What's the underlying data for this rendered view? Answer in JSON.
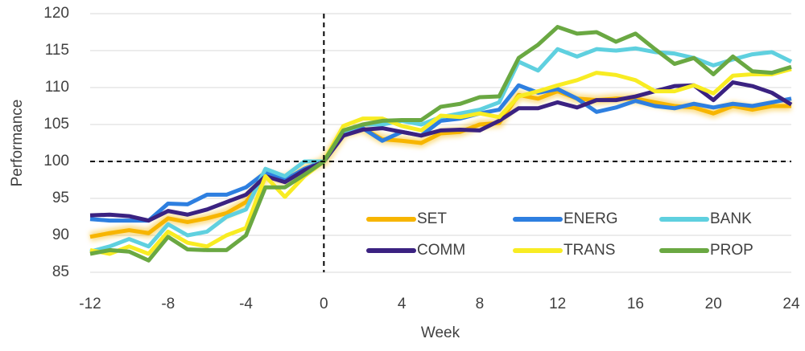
{
  "chart_data": {
    "type": "line",
    "x_label": "Week",
    "y_label": "Performance",
    "x": [
      -12,
      -11,
      -10,
      -9,
      -8,
      -7,
      -6,
      -5,
      -4,
      -3,
      -2,
      -1,
      0,
      1,
      2,
      3,
      4,
      5,
      6,
      7,
      8,
      9,
      10,
      11,
      12,
      13,
      14,
      15,
      16,
      17,
      18,
      19,
      20,
      21,
      22,
      23,
      24
    ],
    "xlim": [
      -12,
      24
    ],
    "xticks": [
      -12,
      -8,
      -4,
      0,
      4,
      8,
      12,
      16,
      20,
      24
    ],
    "ylim": [
      85,
      120
    ],
    "yticks": [
      85,
      90,
      95,
      100,
      105,
      110,
      115,
      120
    ],
    "vlines": [
      0
    ],
    "hlines": [
      100
    ],
    "legend": "lower right",
    "series": [
      {
        "name": "SET",
        "color": "#f7b500",
        "values": [
          89.8,
          90.3,
          90.7,
          90.3,
          92.3,
          91.8,
          92.3,
          93,
          94.5,
          98,
          97.5,
          99,
          100,
          103.8,
          104.5,
          103,
          102.8,
          102.5,
          103.8,
          104,
          105,
          105.2,
          109,
          108.5,
          109.5,
          108.5,
          108.3,
          108.5,
          108.5,
          108,
          107.5,
          107.3,
          106.5,
          107.5,
          107,
          107.5,
          107.5
        ]
      },
      {
        "name": "ENERG",
        "color": "#2e7fe0",
        "values": [
          92.2,
          92,
          92,
          92,
          94.3,
          94.2,
          95.5,
          95.5,
          96.5,
          98.5,
          97.5,
          99,
          100,
          103.5,
          104.5,
          102.8,
          104,
          103.5,
          105.5,
          105.8,
          106.5,
          107,
          110.3,
          109.3,
          109.8,
          108.5,
          106.7,
          107.3,
          108.2,
          107.5,
          107.2,
          107.8,
          107.3,
          107.8,
          107.5,
          108,
          108.5
        ]
      },
      {
        "name": "BANK",
        "color": "#5fd0df",
        "values": [
          87.8,
          88.5,
          89.5,
          88.5,
          91.5,
          90,
          90.5,
          92.5,
          93.5,
          99,
          98,
          100,
          100,
          104,
          105,
          105,
          105.5,
          105,
          106,
          106.5,
          107,
          108,
          113.5,
          112.3,
          115.2,
          114.2,
          115.2,
          115,
          115.3,
          114.8,
          114.6,
          114,
          113,
          113.8,
          114.5,
          114.8,
          113.5
        ]
      },
      {
        "name": "COMM",
        "color": "#3b2281",
        "values": [
          92.7,
          92.8,
          92.6,
          92,
          93.3,
          92.8,
          93.5,
          94.5,
          95.5,
          98,
          97.2,
          98.8,
          100,
          103.5,
          104.3,
          104.5,
          104,
          103.5,
          104.2,
          104.3,
          104.2,
          105.5,
          107.2,
          107.2,
          108,
          107.3,
          108.3,
          108.3,
          108.8,
          109.5,
          110.2,
          110.3,
          108.3,
          110.7,
          110.2,
          109.3,
          107.7
        ]
      },
      {
        "name": "TRANS",
        "color": "#f8ec23",
        "values": [
          88,
          87.5,
          88.5,
          87.5,
          90.5,
          89,
          88.5,
          90,
          91,
          98,
          95.2,
          98,
          100,
          104.8,
          105.8,
          105.8,
          104.8,
          104.2,
          106.2,
          106,
          106.5,
          106,
          108.8,
          109.5,
          110.3,
          111,
          112,
          111.7,
          111,
          109.5,
          109.5,
          110.3,
          109.2,
          111.6,
          111.8,
          111.8,
          112.5
        ]
      },
      {
        "name": "PROP",
        "color": "#6aa842",
        "values": [
          87.5,
          88,
          87.8,
          86.6,
          89.8,
          88.1,
          88,
          88,
          90,
          96.5,
          96.5,
          98.2,
          100,
          104.2,
          105,
          105.5,
          105.6,
          105.6,
          107.4,
          107.8,
          108.7,
          108.8,
          114,
          115.8,
          118.2,
          117.3,
          117.5,
          116.2,
          117.3,
          115.2,
          113.2,
          114,
          111.8,
          114.2,
          112.2,
          112,
          112.8
        ]
      }
    ]
  }
}
